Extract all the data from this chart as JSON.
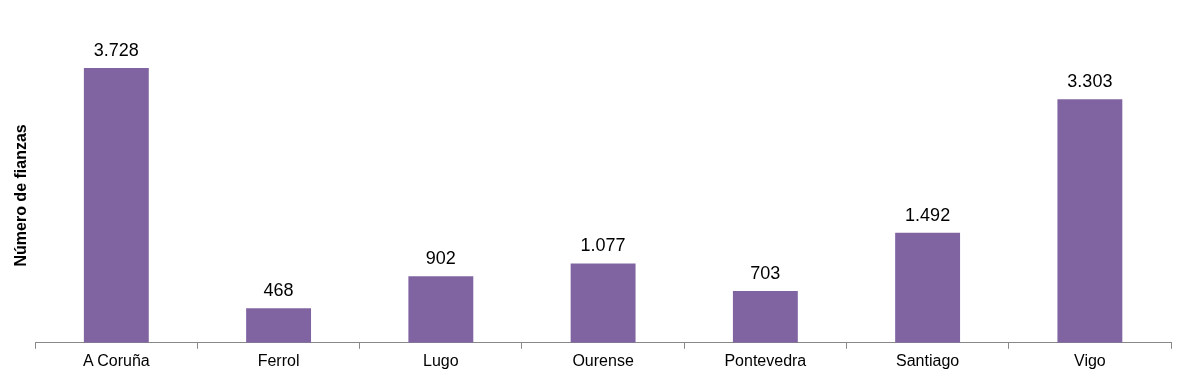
{
  "chart_data": {
    "type": "bar",
    "ylabel": "Número de fianzas",
    "categories": [
      "A Coruña",
      "Ferrol",
      "Lugo",
      "Ourense",
      "Pontevedra",
      "Santiago",
      "Vigo"
    ],
    "values": [
      3728,
      468,
      902,
      1077,
      703,
      1492,
      3303
    ],
    "value_labels": [
      "3.728",
      "468",
      "902",
      "1.077",
      "703",
      "1.492",
      "3.303"
    ],
    "color": "#8064a2",
    "grid": false,
    "legend": false
  }
}
